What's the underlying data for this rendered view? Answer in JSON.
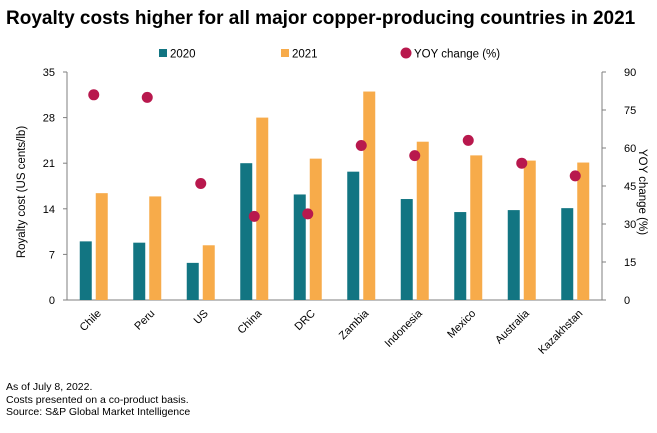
{
  "chart_data": {
    "type": "bar",
    "title": "Royalty costs higher for all major copper-producing countries in 2021",
    "ylabel": "Royalty cost (US cents/lb)",
    "y2label": "YOY change (%)",
    "xlabel": "",
    "ylim": [
      0,
      35
    ],
    "y2lim": [
      0,
      90
    ],
    "yticks": [
      0,
      7,
      14,
      21,
      28,
      35
    ],
    "y2ticks": [
      0,
      15,
      30,
      45,
      60,
      75,
      90
    ],
    "categories": [
      "Chile",
      "Peru",
      "US",
      "China",
      "DRC",
      "Zambia",
      "Indonesia",
      "Mexico",
      "Australia",
      "Kazakhstan"
    ],
    "series": [
      {
        "name": "2020",
        "type": "bar",
        "axis": "left",
        "color": "#127582",
        "values": [
          9.0,
          8.8,
          5.7,
          21.0,
          16.2,
          19.7,
          15.5,
          13.5,
          13.8,
          14.1
        ]
      },
      {
        "name": "2021",
        "type": "bar",
        "axis": "left",
        "color": "#F7AB4A",
        "values": [
          16.4,
          15.9,
          8.4,
          28.0,
          21.7,
          32.0,
          24.3,
          22.2,
          21.4,
          21.1
        ]
      },
      {
        "name": "YOY change (%)",
        "type": "scatter",
        "axis": "right",
        "color": "#B8184D",
        "values": [
          81,
          80,
          46,
          33,
          34,
          61,
          57,
          63,
          54,
          49
        ]
      }
    ],
    "legend": "top",
    "grid": false
  },
  "notes": [
    "As of July 8, 2022.",
    "Costs presented on a co-product basis.",
    "Source: S&P Global Market Intelligence"
  ]
}
